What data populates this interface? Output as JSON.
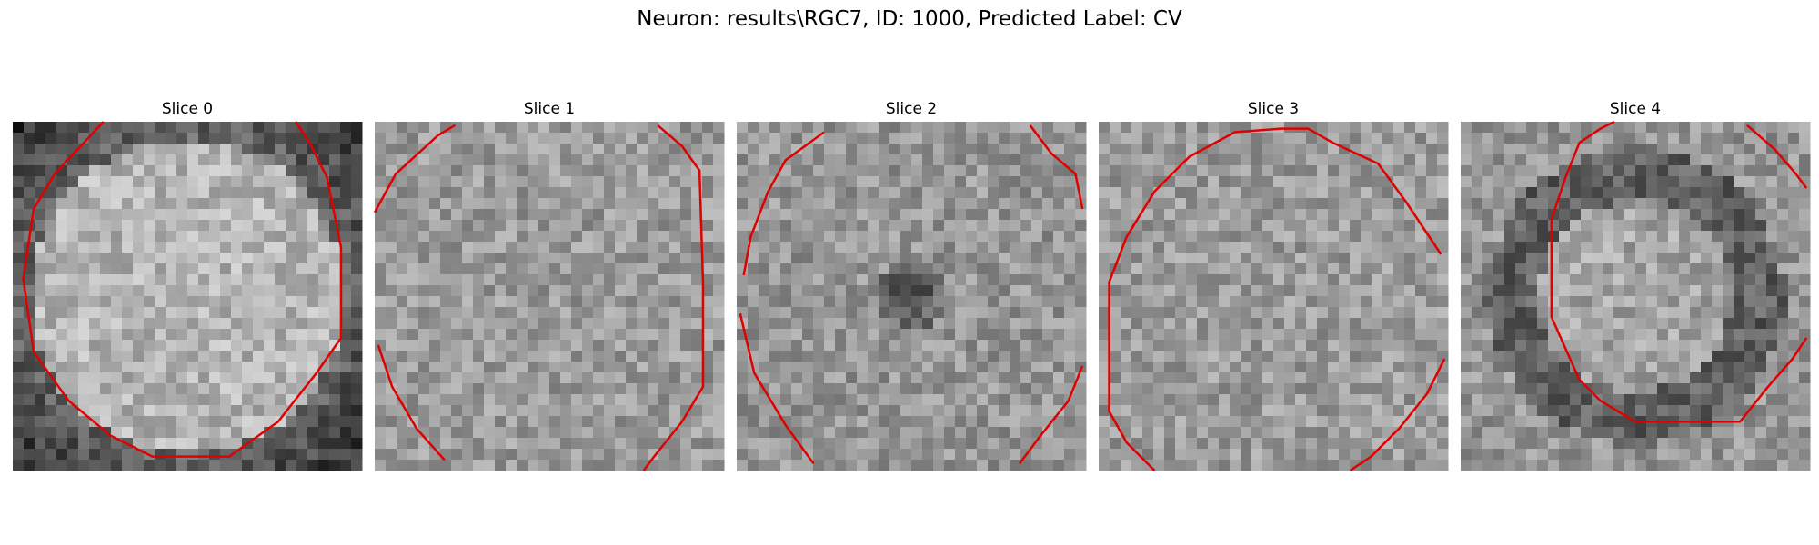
{
  "figure": {
    "title": "Neuron: results\\RGC7, ID: 1000, Predicted Label: CV",
    "contour_color": "#e00000",
    "panels": [
      {
        "title": "Slice 0",
        "brightness": "bright-center"
      },
      {
        "title": "Slice 1",
        "brightness": "uniform"
      },
      {
        "title": "Slice 2",
        "brightness": "dark-center"
      },
      {
        "title": "Slice 3",
        "brightness": "uniform"
      },
      {
        "title": "Slice 4",
        "brightness": "dark-ring"
      }
    ]
  }
}
